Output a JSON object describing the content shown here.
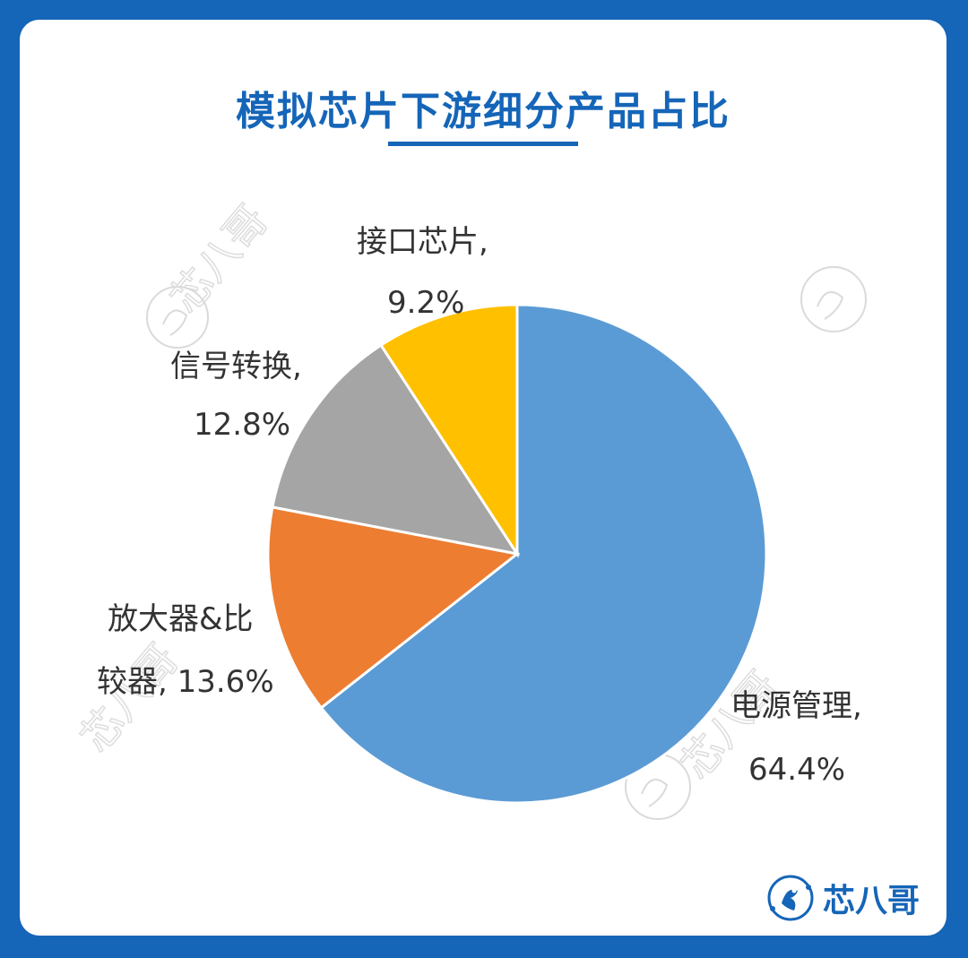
{
  "page_title": "模拟芯片下游细分产品占比",
  "brand": {
    "name": "芯八哥",
    "icon": "bird-logo-icon"
  },
  "watermark": {
    "text": "芯八哥"
  },
  "chart_data": {
    "type": "pie",
    "start_angle_deg": 0,
    "direction": "clockwise",
    "slices": [
      {
        "name": "电源管理",
        "value": 64.4,
        "label_line1": "电源管理,",
        "label_line2": "64.4%",
        "color": "#5b9bd5"
      },
      {
        "name": "放大器&比较器",
        "value": 13.6,
        "label_line1": "放大器&比",
        "label_line2": "较器, 13.6%",
        "color": "#ed7d31"
      },
      {
        "name": "信号转换",
        "value": 12.8,
        "label_line1": "信号转换,",
        "label_line2": "12.8%",
        "color": "#a5a5a5"
      },
      {
        "name": "接口芯片",
        "value": 9.2,
        "label_line1": "接口芯片,",
        "label_line2": "9.2%",
        "color": "#ffc000"
      }
    ]
  }
}
